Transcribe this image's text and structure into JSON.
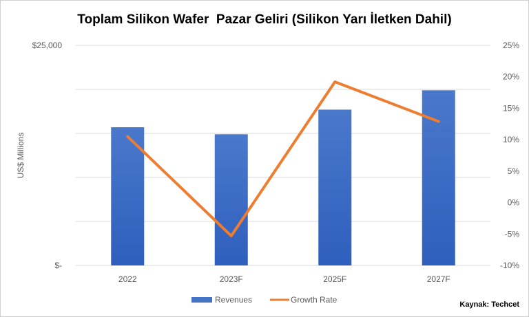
{
  "chart_data": {
    "type": "bar",
    "title": "Toplam Silikon Wafer  Pazar Geliri (Silikon Yarı İletken Dahil)",
    "categories": [
      "2022",
      "2023F",
      "2025F",
      "2027F"
    ],
    "series": [
      {
        "name": "Revenues",
        "type": "bar",
        "axis": "left",
        "values": [
          15700,
          14900,
          17700,
          19900
        ],
        "color": "#4472C4"
      },
      {
        "name": "Growth Rate",
        "type": "line",
        "axis": "right",
        "values": [
          10.5,
          -5.3,
          19.2,
          12.9
        ],
        "color": "#ED7D31"
      }
    ],
    "ylabel": "US$ Millions",
    "y_left": {
      "min": 0,
      "max": 25000,
      "tick_labels": [
        "$-",
        "$25,000"
      ]
    },
    "y_right": {
      "min": -10,
      "max": 25,
      "step": 5,
      "tick_labels": [
        "-10%",
        "-5%",
        "0%",
        "5%",
        "10%",
        "15%",
        "20%",
        "25%"
      ]
    },
    "grid": true,
    "legend": "bottom"
  },
  "source_note": "Kaynak: Techcet"
}
